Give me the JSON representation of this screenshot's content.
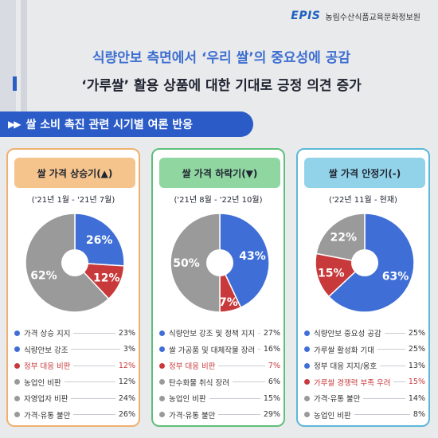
{
  "brand": {
    "logo": "EPIS",
    "name": "농림수산식품교육문화정보원"
  },
  "headline": {
    "line1": "식량안보 측면에서 ‘우리 쌀’의 중요성에 공감",
    "line2": "‘가루쌀’ 활용 상품에 대한 기대로 긍정 의견 증가"
  },
  "section": {
    "icon": "▶▶",
    "title": "쌀 소비 촉진 관련 시기별 여론 반응"
  },
  "colors": {
    "blue": "#3f6fd6",
    "red": "#c8393b",
    "gray": "#9a9a9a",
    "bar": "#2a5bc7"
  },
  "chart_data": [
    {
      "type": "pie",
      "title": "쌀 가격 상승기(▲)",
      "period": "('21년 1월 - '21년 7월)",
      "theme": {
        "border": "#f0b070",
        "head": "#f5c48c"
      },
      "slices": [
        {
          "label": "",
          "value": 26,
          "color": "#3f6fd6",
          "text": "26%"
        },
        {
          "label": "",
          "value": 12,
          "color": "#c8393b",
          "text": "12%"
        },
        {
          "label": "",
          "value": 62,
          "color": "#9a9a9a",
          "text": "62%"
        }
      ],
      "legend": [
        {
          "label": "가격 상승 지지",
          "value": "23%",
          "color": "#3f6fd6"
        },
        {
          "label": "식량안보 강조",
          "value": "3%",
          "color": "#3f6fd6"
        },
        {
          "label": "정부 대응 비판",
          "value": "12%",
          "color": "#c8393b"
        },
        {
          "label": "농업인 비판",
          "value": "12%",
          "color": "#9a9a9a"
        },
        {
          "label": "자영업자 비판",
          "value": "24%",
          "color": "#9a9a9a"
        },
        {
          "label": "가격·유통 불만",
          "value": "26%",
          "color": "#9a9a9a"
        }
      ]
    },
    {
      "type": "pie",
      "title": "쌀 가격 하락기(▼)",
      "period": "('21년 8월 - '22년 10월)",
      "theme": {
        "border": "#5ebf7a",
        "head": "#8fd6a1"
      },
      "slices": [
        {
          "label": "",
          "value": 43,
          "color": "#3f6fd6",
          "text": "43%"
        },
        {
          "label": "",
          "value": 7,
          "color": "#c8393b",
          "text": "7%"
        },
        {
          "label": "",
          "value": 50,
          "color": "#9a9a9a",
          "text": "50%"
        }
      ],
      "legend": [
        {
          "label": "식량안보 강조 및 정책 지지",
          "value": "27%",
          "color": "#3f6fd6"
        },
        {
          "label": "쌀 가공품 및 대체작물 장려",
          "value": "16%",
          "color": "#3f6fd6"
        },
        {
          "label": "정부 대응 비판",
          "value": "7%",
          "color": "#c8393b"
        },
        {
          "label": "탄수화물 취식 장려",
          "value": "6%",
          "color": "#9a9a9a"
        },
        {
          "label": "농업인 비판",
          "value": "15%",
          "color": "#9a9a9a"
        },
        {
          "label": "가격·유통 불만",
          "value": "29%",
          "color": "#9a9a9a"
        }
      ]
    },
    {
      "type": "pie",
      "title": "쌀 가격 안정기(-)",
      "period": "('22년 11월 - 현재)",
      "theme": {
        "border": "#5bb8d8",
        "head": "#93d3ea"
      },
      "slices": [
        {
          "label": "",
          "value": 63,
          "color": "#3f6fd6",
          "text": "63%"
        },
        {
          "label": "",
          "value": 15,
          "color": "#c8393b",
          "text": "15%"
        },
        {
          "label": "",
          "value": 22,
          "color": "#9a9a9a",
          "text": "22%"
        }
      ],
      "legend": [
        {
          "label": "식량안보 중요성 공감",
          "value": "25%",
          "color": "#3f6fd6"
        },
        {
          "label": "가루쌀 활성화 기대",
          "value": "25%",
          "color": "#3f6fd6"
        },
        {
          "label": "정부 대응 지지/옹호",
          "value": "13%",
          "color": "#3f6fd6"
        },
        {
          "label": "가루쌀 경쟁력 부족 우려",
          "value": "15%",
          "color": "#c8393b"
        },
        {
          "label": "가격·유통 불만",
          "value": "14%",
          "color": "#9a9a9a"
        },
        {
          "label": "농업인 비판",
          "value": "8%",
          "color": "#9a9a9a"
        }
      ]
    }
  ]
}
